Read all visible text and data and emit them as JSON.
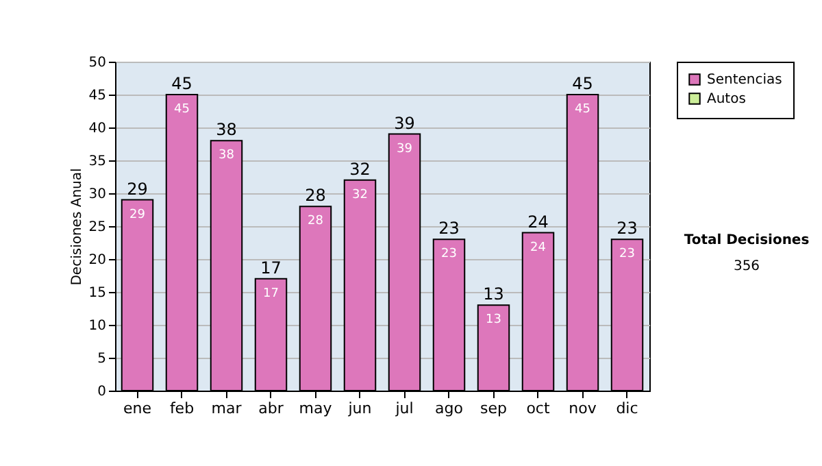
{
  "chart_data": {
    "type": "bar",
    "stacked": true,
    "ylabel": "Decisiones Anual",
    "categories": [
      "ene",
      "feb",
      "mar",
      "abr",
      "may",
      "jun",
      "jul",
      "ago",
      "sep",
      "oct",
      "nov",
      "dic"
    ],
    "series": [
      {
        "name": "Sentencias",
        "color": "#dd77bb",
        "values": [
          29,
          45,
          38,
          17,
          28,
          32,
          39,
          23,
          13,
          24,
          45,
          23
        ]
      },
      {
        "name": "Autos",
        "color": "#ccee99",
        "values": [
          null,
          null,
          null,
          null,
          null,
          null,
          null,
          null,
          null,
          null,
          null,
          null
        ]
      }
    ],
    "data_labels": true,
    "totals": [
      "29",
      "45",
      "38",
      "17",
      "28",
      "32",
      "39",
      "23",
      "13",
      "24",
      "45",
      "23"
    ],
    "ylim": [
      0,
      50
    ],
    "yticks": [
      0,
      5,
      10,
      15,
      20,
      25,
      30,
      35,
      40,
      45,
      50
    ],
    "grid": "y",
    "legend": "right",
    "annotations": [
      "Total Decisiones",
      "356"
    ]
  }
}
